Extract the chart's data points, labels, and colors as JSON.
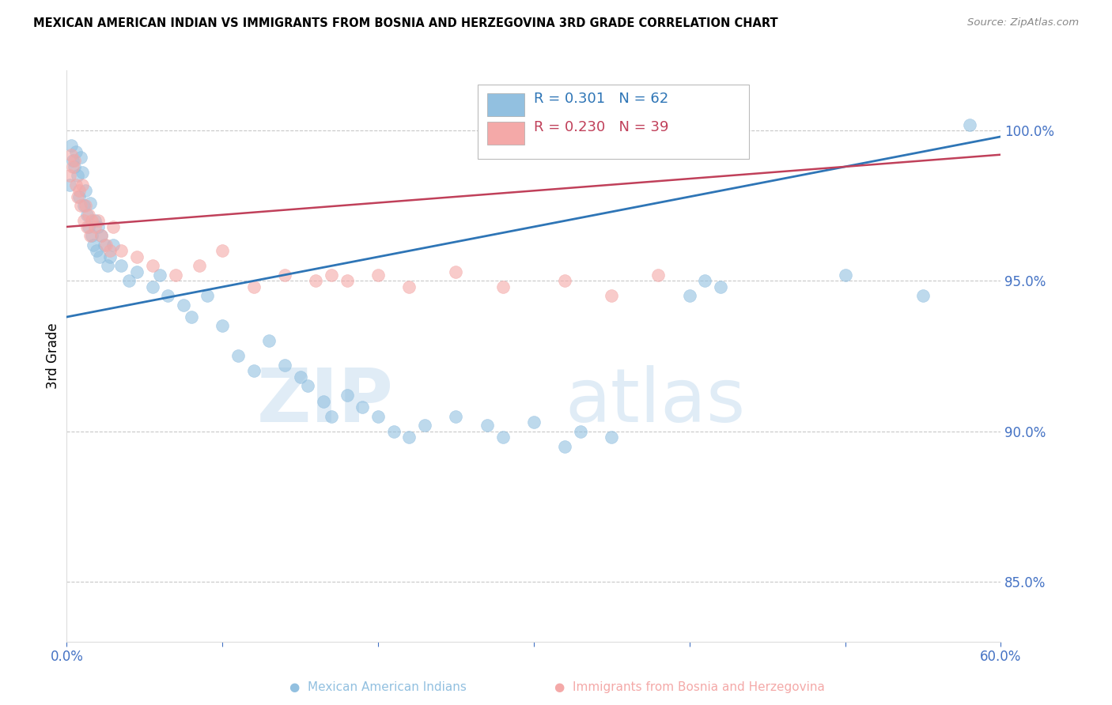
{
  "title": "MEXICAN AMERICAN INDIAN VS IMMIGRANTS FROM BOSNIA AND HERZEGOVINA 3RD GRADE CORRELATION CHART",
  "source": "Source: ZipAtlas.com",
  "ylabel": "3rd Grade",
  "xlim": [
    0.0,
    60.0
  ],
  "ylim": [
    83.0,
    102.0
  ],
  "yticks": [
    85.0,
    90.0,
    95.0,
    100.0
  ],
  "ytick_labels": [
    "85.0%",
    "90.0%",
    "95.0%",
    "100.0%"
  ],
  "xticks": [
    0.0,
    10.0,
    20.0,
    30.0,
    40.0,
    50.0,
    60.0
  ],
  "xtick_labels": [
    "0.0%",
    "",
    "",
    "",
    "",
    "",
    "60.0%"
  ],
  "blue_color": "#92c0e0",
  "pink_color": "#f4a9a8",
  "blue_line_color": "#2e75b6",
  "pink_line_color": "#c0405a",
  "legend_R1": "R = 0.301",
  "legend_N1": "N = 62",
  "legend_R2": "R = 0.230",
  "legend_N2": "N = 39",
  "watermark_zip": "ZIP",
  "watermark_atlas": "atlas",
  "axis_color": "#4472c4",
  "grid_color": "#c8c8c8",
  "blue_scatter_x": [
    0.2,
    0.3,
    0.4,
    0.5,
    0.6,
    0.7,
    0.8,
    0.9,
    1.0,
    1.1,
    1.2,
    1.3,
    1.4,
    1.5,
    1.6,
    1.7,
    1.8,
    1.9,
    2.0,
    2.1,
    2.2,
    2.4,
    2.6,
    2.8,
    3.0,
    3.5,
    4.0,
    4.5,
    5.5,
    6.0,
    6.5,
    7.5,
    8.0,
    9.0,
    10.0,
    11.0,
    12.0,
    13.0,
    14.0,
    15.0,
    15.5,
    16.5,
    17.0,
    18.0,
    19.0,
    20.0,
    21.0,
    22.0,
    23.0,
    25.0,
    27.0,
    28.0,
    30.0,
    32.0,
    33.0,
    35.0,
    40.0,
    41.0,
    42.0,
    50.0,
    55.0,
    58.0
  ],
  "blue_scatter_y": [
    98.2,
    99.5,
    99.0,
    98.8,
    99.3,
    98.5,
    97.8,
    99.1,
    98.6,
    97.5,
    98.0,
    97.2,
    96.8,
    97.6,
    96.5,
    96.2,
    97.0,
    96.0,
    96.8,
    95.8,
    96.5,
    96.2,
    95.5,
    95.8,
    96.2,
    95.5,
    95.0,
    95.3,
    94.8,
    95.2,
    94.5,
    94.2,
    93.8,
    94.5,
    93.5,
    92.5,
    92.0,
    93.0,
    92.2,
    91.8,
    91.5,
    91.0,
    90.5,
    91.2,
    90.8,
    90.5,
    90.0,
    89.8,
    90.2,
    90.5,
    90.2,
    89.8,
    90.3,
    89.5,
    90.0,
    89.8,
    94.5,
    95.0,
    94.8,
    95.2,
    94.5,
    100.2
  ],
  "pink_scatter_x": [
    0.2,
    0.3,
    0.4,
    0.5,
    0.6,
    0.7,
    0.8,
    0.9,
    1.0,
    1.1,
    1.2,
    1.3,
    1.4,
    1.5,
    1.6,
    1.8,
    2.0,
    2.2,
    2.5,
    2.8,
    3.0,
    3.5,
    4.5,
    5.5,
    7.0,
    8.5,
    10.0,
    12.0,
    14.0,
    16.0,
    17.0,
    18.0,
    20.0,
    22.0,
    25.0,
    28.0,
    32.0,
    35.0,
    38.0
  ],
  "pink_scatter_y": [
    98.5,
    99.2,
    98.8,
    99.0,
    98.2,
    97.8,
    98.0,
    97.5,
    98.2,
    97.0,
    97.5,
    96.8,
    97.2,
    96.5,
    97.0,
    96.8,
    97.0,
    96.5,
    96.2,
    96.0,
    96.8,
    96.0,
    95.8,
    95.5,
    95.2,
    95.5,
    96.0,
    94.8,
    95.2,
    95.0,
    95.2,
    95.0,
    95.2,
    94.8,
    95.3,
    94.8,
    95.0,
    94.5,
    95.2
  ],
  "blue_trend_x": [
    0.0,
    60.0
  ],
  "blue_trend_y": [
    93.8,
    99.8
  ],
  "pink_trend_x": [
    0.0,
    60.0
  ],
  "pink_trend_y": [
    96.8,
    99.2
  ]
}
